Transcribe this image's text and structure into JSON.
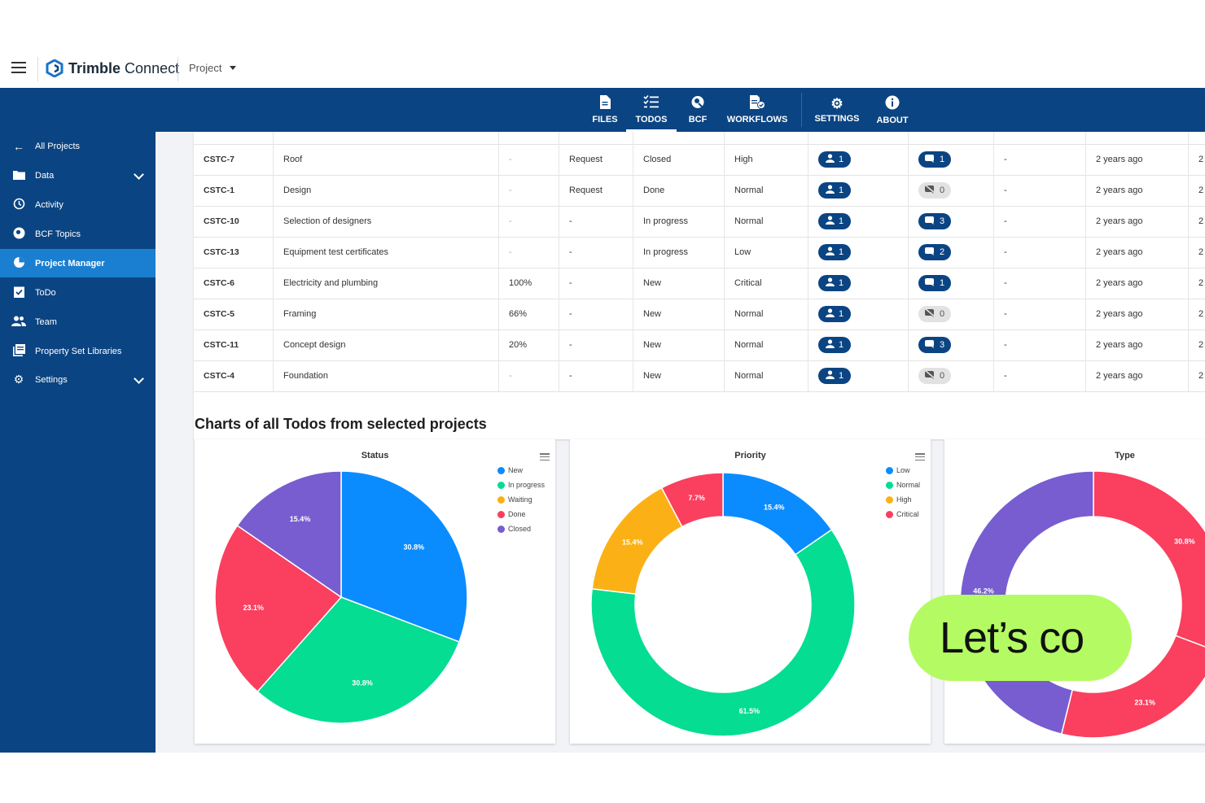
{
  "app": {
    "brand": "Trimble Connect",
    "brand_bold": "Trimble",
    "brand_light": "Connect",
    "project_label": "Project"
  },
  "topnav": [
    {
      "label": "FILES",
      "icon": "file-icon"
    },
    {
      "label": "TODOS",
      "icon": "checklist-icon",
      "active": true
    },
    {
      "label": "BCF",
      "icon": "bcf-icon"
    },
    {
      "label": "WORKFLOWS",
      "icon": "workflow-icon"
    },
    {
      "label": "SETTINGS",
      "icon": "gear-icon"
    },
    {
      "label": "ABOUT",
      "icon": "info-icon"
    }
  ],
  "sidebar": [
    {
      "label": "All Projects",
      "icon": "arrow-left-icon"
    },
    {
      "label": "Data",
      "icon": "folder-icon",
      "expandable": true
    },
    {
      "label": "Activity",
      "icon": "history-icon"
    },
    {
      "label": "BCF Topics",
      "icon": "bcf-icon"
    },
    {
      "label": "Project Manager",
      "icon": "pie-chart-icon",
      "active": true
    },
    {
      "label": "ToDo",
      "icon": "clipboard-check-icon"
    },
    {
      "label": "Team",
      "icon": "team-icon"
    },
    {
      "label": "Property Set Libraries",
      "icon": "library-icon"
    },
    {
      "label": "Settings",
      "icon": "gear-icon",
      "expandable": true
    }
  ],
  "table": {
    "rows": [
      {
        "id": "CSTC-7",
        "title": "Roof",
        "progress": "-",
        "type": "Request",
        "status": "Closed",
        "priority": "High",
        "assignees": "1",
        "comments": "1",
        "comments_zero": false,
        "extra": "-",
        "updated": "2 years ago",
        "trail": "2"
      },
      {
        "id": "CSTC-1",
        "title": "Design",
        "progress": "-",
        "type": "Request",
        "status": "Done",
        "priority": "Normal",
        "assignees": "1",
        "comments": "0",
        "comments_zero": true,
        "extra": "-",
        "updated": "2 years ago",
        "trail": "2"
      },
      {
        "id": "CSTC-10",
        "title": "Selection of designers",
        "progress": "-",
        "type": "-",
        "status": "In progress",
        "priority": "Normal",
        "assignees": "1",
        "comments": "3",
        "comments_zero": false,
        "extra": "-",
        "updated": "2 years ago",
        "trail": "2"
      },
      {
        "id": "CSTC-13",
        "title": "Equipment test certificates",
        "progress": "-",
        "type": "-",
        "status": "In progress",
        "priority": "Low",
        "assignees": "1",
        "comments": "2",
        "comments_zero": false,
        "extra": "-",
        "updated": "2 years ago",
        "trail": "2"
      },
      {
        "id": "CSTC-6",
        "title": "Electricity and plumbing",
        "progress": "100%",
        "type": "-",
        "status": "New",
        "priority": "Critical",
        "assignees": "1",
        "comments": "1",
        "comments_zero": false,
        "extra": "-",
        "updated": "2 years ago",
        "trail": "2"
      },
      {
        "id": "CSTC-5",
        "title": "Framing",
        "progress": "66%",
        "type": "-",
        "status": "New",
        "priority": "Normal",
        "assignees": "1",
        "comments": "0",
        "comments_zero": true,
        "extra": "-",
        "updated": "2 years ago",
        "trail": "2"
      },
      {
        "id": "CSTC-11",
        "title": "Concept design",
        "progress": "20%",
        "type": "-",
        "status": "New",
        "priority": "Normal",
        "assignees": "1",
        "comments": "3",
        "comments_zero": false,
        "extra": "-",
        "updated": "2 years ago",
        "trail": "2"
      },
      {
        "id": "CSTC-4",
        "title": "Foundation",
        "progress": "-",
        "type": "-",
        "status": "New",
        "priority": "Normal",
        "assignees": "1",
        "comments": "0",
        "comments_zero": true,
        "extra": "-",
        "updated": "2 years ago",
        "trail": "2"
      }
    ]
  },
  "charts_section_title": "Charts of all Todos from selected projects",
  "chart_data": [
    {
      "type": "pie",
      "title": "Status",
      "legend_position": "top-right",
      "slices": [
        {
          "label": "New",
          "value": 30.8,
          "display": "30.8%",
          "color": "#0a8cff"
        },
        {
          "label": "In progress",
          "value": 30.8,
          "display": "30.8%",
          "color": "#05dd92"
        },
        {
          "label": "Waiting",
          "value": 0,
          "display": "",
          "color": "#fbb116"
        },
        {
          "label": "Done",
          "value": 23.1,
          "display": "23.1%",
          "color": "#fa3f5f"
        },
        {
          "label": "Closed",
          "value": 15.4,
          "display": "15.4%",
          "color": "#775dd0"
        }
      ]
    },
    {
      "type": "donut",
      "title": "Priority",
      "legend_position": "top-right",
      "slices": [
        {
          "label": "Low",
          "value": 15.4,
          "display": "15.4%",
          "color": "#0a8cff"
        },
        {
          "label": "Normal",
          "value": 61.5,
          "display": "61.5%",
          "color": "#05dd92"
        },
        {
          "label": "High",
          "value": 15.4,
          "display": "15.4%",
          "color": "#fbb116"
        },
        {
          "label": "Critical",
          "value": 7.7,
          "display": "7.7%",
          "color": "#fa3f5f"
        }
      ]
    },
    {
      "type": "donut",
      "title": "Type",
      "slices": [
        {
          "label": "",
          "value": 30.8,
          "display": "30.8%",
          "color": "#fa3f5f"
        },
        {
          "label": "",
          "value": 23.1,
          "display": "23.1%",
          "color": "#fa3f5f"
        },
        {
          "label": "",
          "value": 46.2,
          "display": "46.2%",
          "color": "#775dd0"
        }
      ]
    }
  ],
  "overlay_badge": "Let’s co"
}
